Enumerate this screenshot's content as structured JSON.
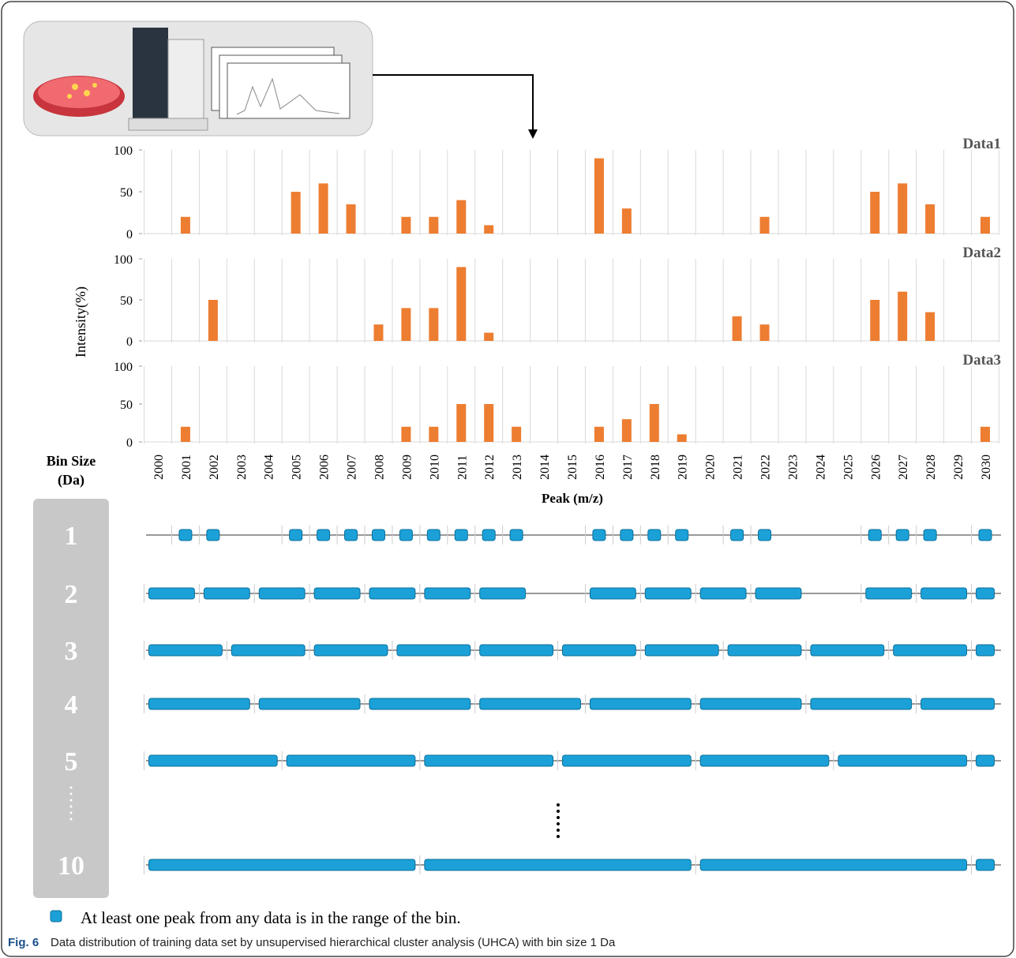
{
  "chart_data": {
    "type": "bar",
    "categories": [
      "2000",
      "2001",
      "2002",
      "2003",
      "2004",
      "2005",
      "2006",
      "2007",
      "2008",
      "2009",
      "2010",
      "2011",
      "2012",
      "2013",
      "2014",
      "2015",
      "2016",
      "2017",
      "2018",
      "2019",
      "2020",
      "2021",
      "2022",
      "2023",
      "2024",
      "2025",
      "2026",
      "2027",
      "2028",
      "2029",
      "2030"
    ],
    "series": [
      {
        "name": "Data1",
        "color": "#ed7d31",
        "values": [
          0,
          20,
          0,
          0,
          0,
          50,
          60,
          35,
          0,
          20,
          20,
          40,
          10,
          0,
          0,
          0,
          90,
          30,
          0,
          0,
          0,
          0,
          20,
          0,
          0,
          0,
          50,
          60,
          35,
          0,
          20
        ]
      },
      {
        "name": "Data2",
        "color": "#ed7d31",
        "values": [
          0,
          0,
          50,
          0,
          0,
          0,
          0,
          0,
          20,
          40,
          40,
          90,
          10,
          0,
          0,
          0,
          0,
          0,
          0,
          0,
          0,
          30,
          20,
          0,
          0,
          0,
          50,
          60,
          35,
          0,
          0
        ]
      },
      {
        "name": "Data3",
        "color": "#ed7d31",
        "values": [
          0,
          20,
          0,
          0,
          0,
          0,
          0,
          0,
          0,
          20,
          20,
          50,
          50,
          20,
          0,
          0,
          20,
          30,
          50,
          10,
          0,
          0,
          0,
          0,
          0,
          0,
          0,
          0,
          0,
          0,
          20
        ]
      }
    ],
    "ylim": [
      0,
      100
    ],
    "yticks": [
      0,
      50,
      100
    ],
    "grid": true,
    "y_label": "Intensity(%)",
    "x_label": "Peak (m/z)"
  },
  "bin_panel": {
    "title": [
      "Bin Size",
      "(Da)"
    ],
    "color": "#1ba1d8",
    "rows": [
      {
        "size": 1,
        "bins": [
          2001,
          2002,
          2005,
          2006,
          2007,
          2008,
          2009,
          2010,
          2011,
          2012,
          2013,
          2016,
          2017,
          2018,
          2019,
          2021,
          2022,
          2026,
          2027,
          2028,
          2030
        ]
      },
      {
        "size": 2,
        "bins": [
          2000,
          2002,
          2004,
          2006,
          2008,
          2010,
          2012,
          2016,
          2018,
          2020,
          2022,
          2026,
          2028,
          2030
        ]
      },
      {
        "size": 3,
        "bins": [
          2000,
          2003,
          2006,
          2009,
          2012,
          2015,
          2018,
          2021,
          2024,
          2027,
          2030
        ]
      },
      {
        "size": 4,
        "bins": [
          2000,
          2004,
          2008,
          2012,
          2016,
          2020,
          2024,
          2028
        ]
      },
      {
        "size": 5,
        "bins": [
          2000,
          2005,
          2010,
          2015,
          2020,
          2025,
          2030
        ]
      },
      {
        "size": 10,
        "bins": [
          2000,
          2010,
          2020,
          2030
        ]
      }
    ]
  },
  "legend_text": "At least one peak from any data is in the range of the bin.",
  "caption": {
    "label": "Fig. 6",
    "text": "Data distribution of training data set by unsupervised hierarchical cluster analysis (UHCA) with bin size 1 Da"
  }
}
